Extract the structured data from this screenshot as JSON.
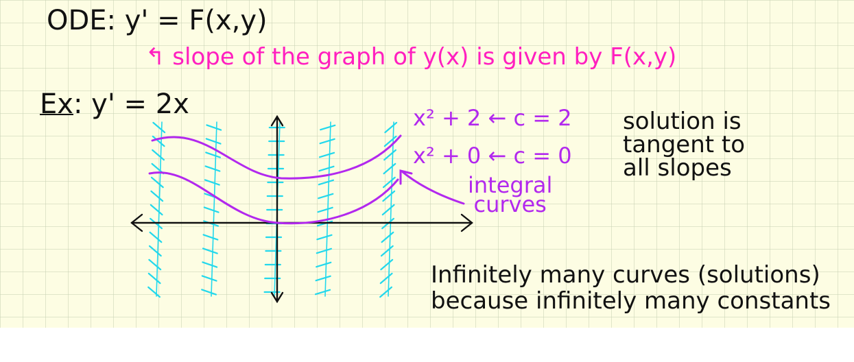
{
  "colors": {
    "paper": "#fdfde3",
    "grid": "#c8d2b4",
    "ink": "#111111",
    "magenta": "#ff1fbf",
    "purple": "#b228ee",
    "cyan": "#22d8ec"
  },
  "ode_line": "ODE: y' = F(x,y)",
  "slope_note": "↰ slope of the graph of y(x) is given by F(x,y)",
  "example": {
    "label": "Ex",
    "equation": ": y' = 2x"
  },
  "curve_labels": {
    "upper": "x² + 2 ← c = 2",
    "lower": "x² + 0 ← c = 0"
  },
  "integral_label": {
    "line1": "integral",
    "line2": "curves"
  },
  "tangent_note": {
    "line1": "solution is",
    "line2": "tangent to",
    "line3": "all slopes"
  },
  "infinite_note": {
    "line1": "Infinitely many curves (solutions)",
    "line2": "because infinitely many constants"
  }
}
